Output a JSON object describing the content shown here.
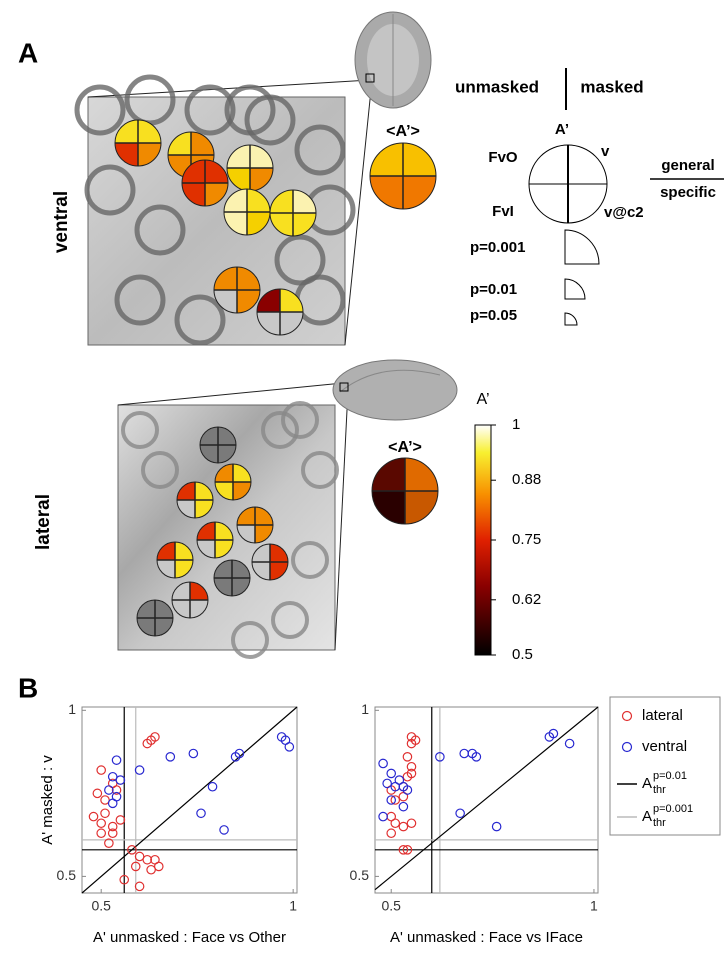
{
  "panel_labels": [
    "A",
    "B"
  ],
  "panel_a": {
    "rows": [
      "ventral",
      "lateral"
    ],
    "header": [
      "unmasked",
      "masked"
    ],
    "mean_label": "<A’>",
    "key": {
      "top": "A’",
      "left_top": "FvO",
      "right_top": "v",
      "left_bottom": "FvI",
      "right_bottom": "v@c2",
      "general": "general",
      "specific": "specific"
    },
    "significance": [
      "p=0.001",
      "p=0.01",
      "p=0.05"
    ],
    "colorbar": {
      "label": "A’",
      "lim": [
        0.5,
        1
      ],
      "ticks": [
        0.5,
        0.62,
        0.75,
        0.88,
        1
      ]
    }
  },
  "chart_data": [
    {
      "type": "scatter",
      "xlabel": "A' unmasked : Face vs Other",
      "ylabel": "A' masked : v",
      "xlim": [
        0.45,
        1.01
      ],
      "ylim": [
        0.45,
        1.01
      ],
      "xticks": [
        0.5,
        1
      ],
      "yticks": [
        0.5,
        1
      ],
      "thresholds_x": [
        0.56,
        0.59
      ],
      "thresholds_y": [
        0.58,
        0.61
      ],
      "series": [
        {
          "name": "lateral",
          "color": "#e03030",
          "x": [
            0.63,
            0.64,
            0.62,
            0.5,
            0.53,
            0.49,
            0.54,
            0.51,
            0.48,
            0.51,
            0.5,
            0.53,
            0.55,
            0.53,
            0.5,
            0.52,
            0.58,
            0.6,
            0.62,
            0.59,
            0.63,
            0.65,
            0.64,
            0.56,
            0.6
          ],
          "values": [
            0.91,
            0.92,
            0.9,
            0.82,
            0.78,
            0.75,
            0.76,
            0.73,
            0.68,
            0.69,
            0.66,
            0.65,
            0.67,
            0.63,
            0.63,
            0.6,
            0.58,
            0.56,
            0.55,
            0.53,
            0.52,
            0.53,
            0.55,
            0.49,
            0.47
          ]
        },
        {
          "name": "ventral",
          "color": "#2828d0",
          "x": [
            0.54,
            0.53,
            0.55,
            0.52,
            0.54,
            0.53,
            0.6,
            0.68,
            0.74,
            0.86,
            0.85,
            0.97,
            0.98,
            0.99,
            0.79,
            0.76,
            0.82
          ],
          "values": [
            0.85,
            0.8,
            0.79,
            0.76,
            0.74,
            0.72,
            0.82,
            0.86,
            0.87,
            0.87,
            0.86,
            0.92,
            0.91,
            0.89,
            0.77,
            0.69,
            0.64
          ]
        }
      ]
    },
    {
      "type": "scatter",
      "xlabel": "A' unmasked : Face vs IFace",
      "xlim": [
        0.46,
        1.01
      ],
      "ylim": [
        0.45,
        1.01
      ],
      "xticks": [
        0.5,
        1
      ],
      "yticks": [
        0.5,
        1
      ],
      "thresholds_x": [
        0.6,
        0.62
      ],
      "thresholds_y": [
        0.58,
        0.61
      ],
      "series": [
        {
          "name": "lateral",
          "color": "#e03030",
          "x": [
            0.55,
            0.56,
            0.55,
            0.54,
            0.55,
            0.55,
            0.54,
            0.53,
            0.53,
            0.5,
            0.51,
            0.5,
            0.51,
            0.53,
            0.55,
            0.5,
            0.53,
            0.54
          ],
          "values": [
            0.92,
            0.91,
            0.9,
            0.86,
            0.83,
            0.81,
            0.8,
            0.77,
            0.74,
            0.76,
            0.73,
            0.68,
            0.66,
            0.65,
            0.66,
            0.63,
            0.58,
            0.58
          ]
        },
        {
          "name": "ventral",
          "color": "#2828d0",
          "x": [
            0.48,
            0.5,
            0.52,
            0.49,
            0.51,
            0.53,
            0.54,
            0.5,
            0.53,
            0.48,
            0.62,
            0.68,
            0.7,
            0.71,
            0.67,
            0.76,
            0.89,
            0.9,
            0.94
          ],
          "values": [
            0.84,
            0.81,
            0.79,
            0.78,
            0.77,
            0.77,
            0.76,
            0.73,
            0.71,
            0.68,
            0.86,
            0.87,
            0.87,
            0.86,
            0.69,
            0.65,
            0.92,
            0.93,
            0.9
          ]
        }
      ],
      "threshold_legend": [
        {
          "name": "A",
          "sub": "thr",
          "sup": "p=0.01",
          "color": "#000000"
        },
        {
          "name": "A",
          "sub": "thr",
          "sup": "p=0.001",
          "color": "#bbbbbb"
        }
      ]
    }
  ]
}
